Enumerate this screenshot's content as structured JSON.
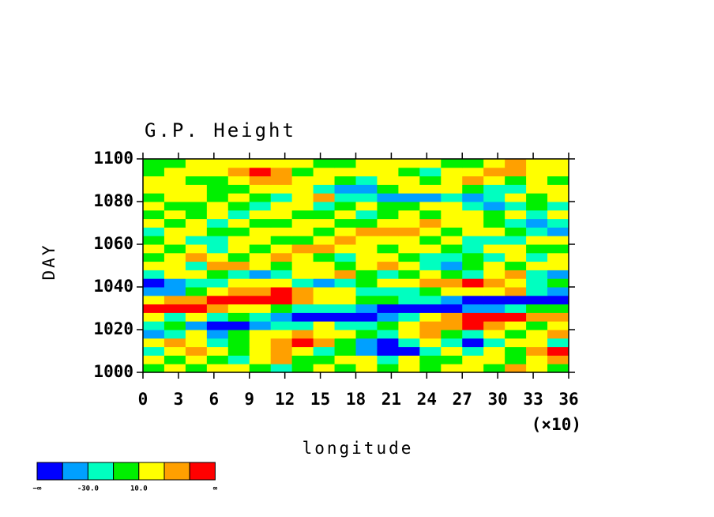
{
  "chart_data": {
    "type": "heatmap",
    "title": "G.P. Height",
    "xlabel": "longitude",
    "ylabel": "DAY",
    "x_multiplier": "(×10)",
    "xlim": [
      0,
      36
    ],
    "ylim": [
      1000,
      1100
    ],
    "xticks": [
      0,
      3,
      6,
      9,
      12,
      15,
      18,
      21,
      24,
      27,
      30,
      33,
      36
    ],
    "yticks": [
      1000,
      1020,
      1040,
      1060,
      1080,
      1100
    ],
    "x": [
      0.9,
      2.7,
      4.5,
      6.3,
      8.1,
      9.9,
      11.7,
      13.5,
      15.3,
      17.1,
      18.9,
      20.7,
      22.5,
      24.3,
      26.1,
      27.9,
      29.7,
      31.5,
      33.3,
      35.1
    ],
    "y": [
      1002,
      1006,
      1010,
      1014,
      1018,
      1022,
      1026,
      1030,
      1034,
      1038,
      1042,
      1046,
      1050,
      1054,
      1058,
      1062,
      1066,
      1070,
      1074,
      1078,
      1082,
      1086,
      1090,
      1094,
      1098
    ],
    "z": [
      [
        5,
        15,
        -5,
        10,
        20,
        0,
        -15,
        5,
        12,
        -8,
        15,
        3,
        20,
        -5,
        10,
        25,
        8,
        35,
        15,
        5
      ],
      [
        12,
        -10,
        20,
        5,
        -20,
        15,
        30,
        8,
        -5,
        20,
        10,
        -15,
        25,
        5,
        -10,
        15,
        20,
        -5,
        10,
        30
      ],
      [
        -20,
        25,
        40,
        15,
        -10,
        20,
        35,
        10,
        -25,
        5,
        -40,
        -60,
        -55,
        -30,
        10,
        -15,
        20,
        5,
        40,
        55
      ],
      [
        15,
        30,
        10,
        -20,
        -5,
        20,
        45,
        55,
        40,
        -10,
        -35,
        -60,
        -20,
        15,
        -30,
        -55,
        -20,
        10,
        25,
        -15
      ],
      [
        -40,
        -20,
        10,
        -35,
        -10,
        25,
        15,
        35,
        10,
        20,
        5,
        -15,
        20,
        30,
        -10,
        -20,
        10,
        -5,
        20,
        35
      ],
      [
        -25,
        -10,
        -45,
        -60,
        -65,
        -50,
        -20,
        -30,
        10,
        -15,
        -20,
        5,
        25,
        30,
        45,
        55,
        40,
        20,
        -5,
        10
      ],
      [
        10,
        -20,
        15,
        -30,
        -10,
        -25,
        -45,
        -60,
        -65,
        -60,
        -55,
        -40,
        -20,
        10,
        35,
        50,
        60,
        55,
        45,
        30
      ],
      [
        60,
        55,
        50,
        40,
        25,
        10,
        -10,
        -20,
        -30,
        -25,
        -40,
        -55,
        -60,
        -65,
        -60,
        -50,
        -45,
        -30,
        -10,
        5
      ],
      [
        20,
        35,
        45,
        50,
        55,
        60,
        50,
        30,
        15,
        10,
        5,
        -10,
        -20,
        -30,
        -40,
        -55,
        -65,
        -70,
        -70,
        -65
      ],
      [
        -45,
        -50,
        -10,
        20,
        30,
        45,
        55,
        40,
        20,
        10,
        -15,
        -20,
        -30,
        -10,
        15,
        20,
        25,
        30,
        -20,
        -40
      ],
      [
        -55,
        -40,
        -20,
        -30,
        10,
        15,
        20,
        -20,
        -45,
        -30,
        -10,
        20,
        25,
        35,
        45,
        55,
        30,
        10,
        -15,
        -10
      ],
      [
        -30,
        10,
        20,
        5,
        -20,
        -45,
        -30,
        10,
        20,
        35,
        -10,
        -20,
        5,
        15,
        -10,
        -20,
        20,
        30,
        -25,
        -40
      ],
      [
        10,
        20,
        -15,
        30,
        45,
        15,
        -10,
        20,
        10,
        -5,
        15,
        30,
        10,
        -20,
        -35,
        -10,
        20,
        -5,
        15,
        10
      ],
      [
        -5,
        15,
        30,
        10,
        -10,
        20,
        35,
        20,
        5,
        -15,
        10,
        20,
        -10,
        -30,
        -20,
        -5,
        -25,
        10,
        -20,
        15
      ],
      [
        20,
        -10,
        10,
        -25,
        15,
        -5,
        20,
        30,
        45,
        25,
        10,
        -10,
        15,
        20,
        5,
        -15,
        10,
        20,
        -10,
        5
      ],
      [
        5,
        20,
        -30,
        -20,
        10,
        25,
        -10,
        5,
        20,
        35,
        15,
        20,
        10,
        -5,
        15,
        -25,
        -30,
        -15,
        10,
        20
      ],
      [
        -15,
        10,
        20,
        5,
        -10,
        15,
        10,
        20,
        -5,
        25,
        40,
        35,
        30,
        15,
        5,
        20,
        10,
        -10,
        -20,
        -35
      ],
      [
        10,
        -5,
        15,
        -20,
        20,
        5,
        -10,
        15,
        10,
        -5,
        5,
        10,
        20,
        30,
        25,
        15,
        -10,
        -25,
        -40,
        -30
      ],
      [
        -10,
        20,
        5,
        15,
        -15,
        10,
        25,
        5,
        -10,
        15,
        -20,
        5,
        15,
        -10,
        20,
        10,
        -5,
        20,
        -20,
        15
      ],
      [
        15,
        5,
        -10,
        20,
        5,
        -20,
        10,
        15,
        -15,
        5,
        20,
        -10,
        -5,
        15,
        10,
        -30,
        -45,
        -20,
        5,
        -15
      ],
      [
        -5,
        20,
        10,
        -10,
        15,
        5,
        -15,
        20,
        30,
        -20,
        -30,
        -50,
        -45,
        -35,
        -20,
        -40,
        -25,
        10,
        -10,
        20
      ],
      [
        20,
        10,
        15,
        5,
        -10,
        20,
        25,
        10,
        -30,
        -45,
        -35,
        -10,
        15,
        20,
        10,
        -5,
        -20,
        -15,
        15,
        10
      ],
      [
        10,
        25,
        5,
        -5,
        20,
        40,
        30,
        15,
        10,
        -5,
        -20,
        10,
        25,
        5,
        20,
        35,
        15,
        -10,
        20,
        5
      ],
      [
        -10,
        15,
        20,
        10,
        35,
        50,
        30,
        -5,
        20,
        10,
        15,
        20,
        5,
        -15,
        10,
        25,
        40,
        30,
        15,
        20
      ],
      [
        5,
        -5,
        10,
        20,
        15,
        25,
        10,
        20,
        5,
        -10,
        15,
        10,
        25,
        20,
        5,
        -5,
        15,
        30,
        20,
        10
      ]
    ],
    "colorbar": {
      "colors": [
        "#0000ff",
        "#00a0ff",
        "#00ffc0",
        "#00f000",
        "#ffff00",
        "#ffa000",
        "#ff0000"
      ],
      "levels": [
        -50,
        -30,
        -10,
        10,
        30,
        50
      ],
      "labels": [
        "−∞",
        null,
        "-30.0",
        null,
        "10.0",
        null,
        null,
        "∞"
      ]
    }
  }
}
